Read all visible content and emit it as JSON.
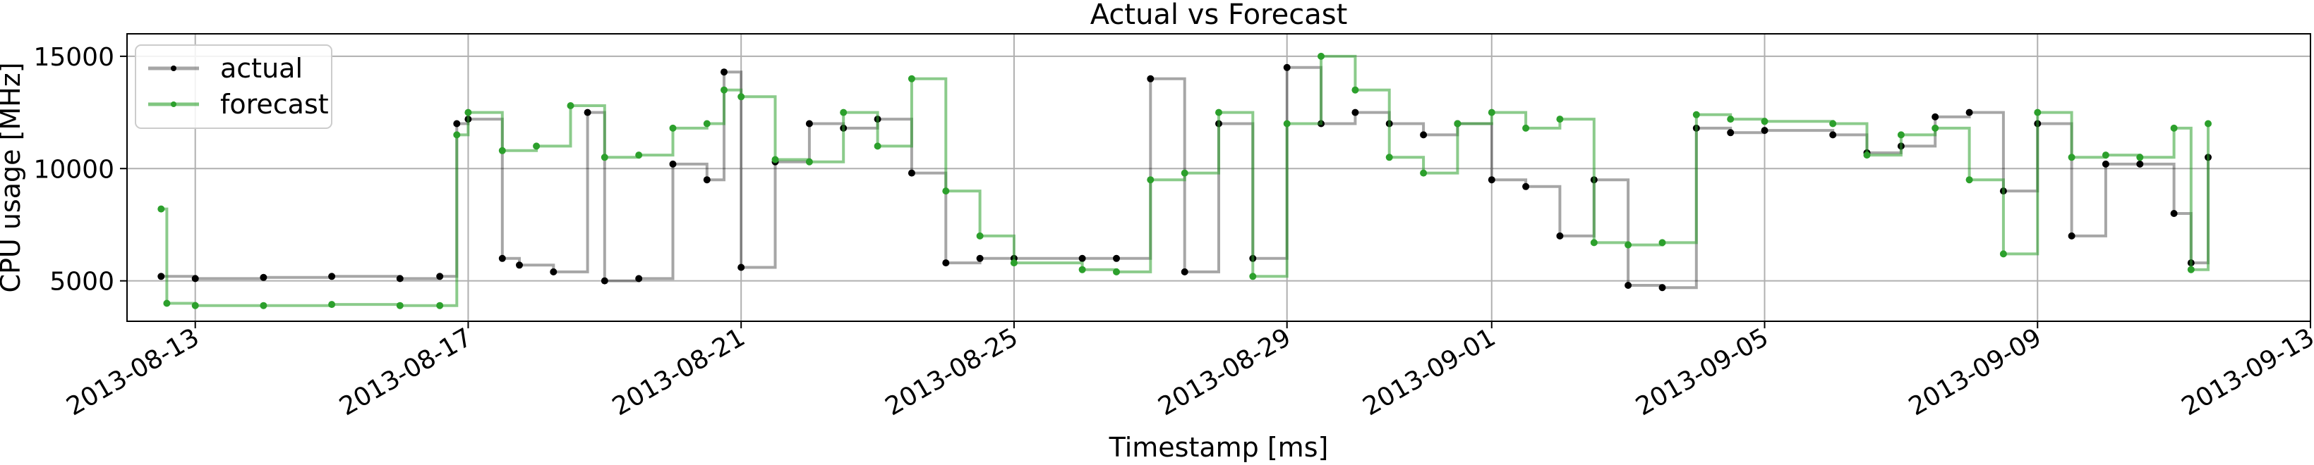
{
  "chart_data": {
    "type": "line",
    "title": "Actual vs Forecast",
    "xlabel": "Timestamp [ms]",
    "ylabel": "CPU usage [MHz]",
    "x_axis_type": "date",
    "xlim": [
      "2013-08-12",
      "2013-09-13"
    ],
    "ylim": [
      3200,
      16000
    ],
    "grid": true,
    "legend_position": "top-left",
    "x_ticks": [
      "2013-08-13",
      "2013-08-17",
      "2013-08-21",
      "2013-08-25",
      "2013-08-29",
      "2013-09-01",
      "2013-09-05",
      "2013-09-09",
      "2013-09-13"
    ],
    "y_ticks": [
      5000,
      10000,
      15000
    ],
    "series": [
      {
        "name": "actual",
        "color": "#000000",
        "x": [
          "2013-08-12 12:00",
          "2013-08-13 00:00",
          "2013-08-14 00:00",
          "2013-08-15 00:00",
          "2013-08-16 00:00",
          "2013-08-16 14:00",
          "2013-08-16 20:00",
          "2013-08-17 00:00",
          "2013-08-17 12:00",
          "2013-08-17 18:00",
          "2013-08-18 06:00",
          "2013-08-18 18:00",
          "2013-08-19 00:00",
          "2013-08-19 12:00",
          "2013-08-20 00:00",
          "2013-08-20 12:00",
          "2013-08-20 18:00",
          "2013-08-21 00:00",
          "2013-08-21 12:00",
          "2013-08-22 00:00",
          "2013-08-22 12:00",
          "2013-08-23 00:00",
          "2013-08-23 12:00",
          "2013-08-24 00:00",
          "2013-08-24 12:00",
          "2013-08-25 00:00",
          "2013-08-26 00:00",
          "2013-08-26 12:00",
          "2013-08-27 00:00",
          "2013-08-27 12:00",
          "2013-08-28 00:00",
          "2013-08-28 12:00",
          "2013-08-29 00:00",
          "2013-08-29 12:00",
          "2013-08-30 00:00",
          "2013-08-30 12:00",
          "2013-08-31 00:00",
          "2013-08-31 12:00",
          "2013-09-01 00:00",
          "2013-09-01 12:00",
          "2013-09-02 00:00",
          "2013-09-02 12:00",
          "2013-09-03 00:00",
          "2013-09-03 12:00",
          "2013-09-04 00:00",
          "2013-09-04 12:00",
          "2013-09-05 00:00",
          "2013-09-06 00:00",
          "2013-09-06 12:00",
          "2013-09-07 00:00",
          "2013-09-07 12:00",
          "2013-09-08 00:00",
          "2013-09-08 12:00",
          "2013-09-09 00:00",
          "2013-09-09 12:00",
          "2013-09-10 00:00",
          "2013-09-10 12:00",
          "2013-09-11 00:00",
          "2013-09-11 06:00",
          "2013-09-11 12:00"
        ],
        "y": [
          5200,
          5100,
          5150,
          5200,
          5100,
          5200,
          12000,
          12200,
          6000,
          5700,
          5400,
          12500,
          5000,
          5100,
          10200,
          9500,
          14300,
          5600,
          10300,
          12000,
          11800,
          12200,
          9800,
          5800,
          6000,
          6000,
          6000,
          6000,
          14000,
          5400,
          12000,
          6000,
          14500,
          12000,
          12500,
          12000,
          11500,
          12000,
          9500,
          9200,
          7000,
          9500,
          4800,
          4700,
          11800,
          11600,
          11700,
          11500,
          10700,
          11000,
          12300,
          12500,
          9000,
          12000,
          7000,
          10200,
          10200,
          8000,
          5800,
          10500
        ]
      },
      {
        "name": "forecast",
        "color": "#2ca02c",
        "x": [
          "2013-08-12 12:00",
          "2013-08-12 14:00",
          "2013-08-13 00:00",
          "2013-08-14 00:00",
          "2013-08-15 00:00",
          "2013-08-16 00:00",
          "2013-08-16 14:00",
          "2013-08-16 20:00",
          "2013-08-17 00:00",
          "2013-08-17 12:00",
          "2013-08-18 00:00",
          "2013-08-18 12:00",
          "2013-08-19 00:00",
          "2013-08-19 12:00",
          "2013-08-20 00:00",
          "2013-08-20 12:00",
          "2013-08-20 18:00",
          "2013-08-21 00:00",
          "2013-08-21 12:00",
          "2013-08-22 00:00",
          "2013-08-22 12:00",
          "2013-08-23 00:00",
          "2013-08-23 12:00",
          "2013-08-24 00:00",
          "2013-08-24 12:00",
          "2013-08-25 00:00",
          "2013-08-26 00:00",
          "2013-08-26 12:00",
          "2013-08-27 00:00",
          "2013-08-27 12:00",
          "2013-08-28 00:00",
          "2013-08-28 12:00",
          "2013-08-29 00:00",
          "2013-08-29 12:00",
          "2013-08-30 00:00",
          "2013-08-30 12:00",
          "2013-08-31 00:00",
          "2013-08-31 12:00",
          "2013-09-01 00:00",
          "2013-09-01 12:00",
          "2013-09-02 00:00",
          "2013-09-02 12:00",
          "2013-09-03 00:00",
          "2013-09-03 12:00",
          "2013-09-04 00:00",
          "2013-09-04 12:00",
          "2013-09-05 00:00",
          "2013-09-06 00:00",
          "2013-09-06 12:00",
          "2013-09-07 00:00",
          "2013-09-07 12:00",
          "2013-09-08 00:00",
          "2013-09-08 12:00",
          "2013-09-09 00:00",
          "2013-09-09 12:00",
          "2013-09-10 00:00",
          "2013-09-10 12:00",
          "2013-09-11 00:00",
          "2013-09-11 06:00",
          "2013-09-11 12:00"
        ],
        "y": [
          8200,
          4000,
          3900,
          3900,
          3950,
          3900,
          3900,
          11500,
          12500,
          10800,
          11000,
          12800,
          10500,
          10600,
          11800,
          12000,
          13500,
          13200,
          10400,
          10300,
          12500,
          11000,
          14000,
          9000,
          7000,
          5800,
          5500,
          5400,
          9500,
          9800,
          12500,
          5200,
          12000,
          15000,
          13500,
          10500,
          9800,
          12000,
          12500,
          11800,
          12200,
          6700,
          6600,
          6700,
          12400,
          12200,
          12100,
          12000,
          10600,
          11500,
          11800,
          9500,
          6200,
          12500,
          10500,
          10600,
          10500,
          11800,
          5500,
          12000
        ]
      }
    ]
  }
}
